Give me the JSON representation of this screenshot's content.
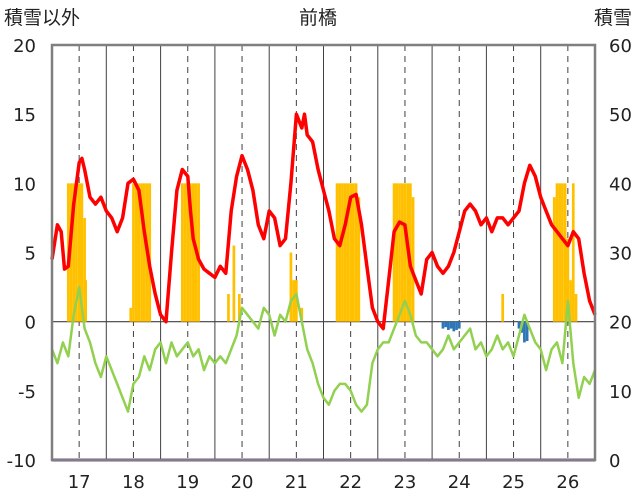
{
  "chart_data": {
    "type": "bar+line",
    "title": "前橋",
    "left_axis": {
      "label": "積雪以外",
      "ylim": [
        -10,
        20
      ],
      "ticks": [
        "20",
        "15",
        "10",
        "5",
        "0",
        "-5",
        "-10"
      ]
    },
    "right_axis": {
      "label": "積雪",
      "ylim": [
        0,
        60
      ],
      "ticks": [
        "60",
        "50",
        "40",
        "30",
        "20",
        "10",
        "0"
      ]
    },
    "x_range": [
      16.5,
      26.5
    ],
    "x_ticks": [
      "17",
      "18",
      "19",
      "20",
      "21",
      "22",
      "23",
      "24",
      "25",
      "26"
    ],
    "grid": {
      "vertical_dashed_at": [
        17,
        18,
        19,
        20,
        21,
        22,
        23,
        24,
        25,
        26
      ],
      "vertical_solid_between": true
    },
    "colors": {
      "red": "#ff0000",
      "green": "#92d050",
      "orange": "#ffc000",
      "blue": "#2e75b6",
      "purple": "#7030a0",
      "frame": "#7f7f7f"
    },
    "series": [
      {
        "color": "red",
        "axis": "left",
        "x": [
          16.5,
          16.6,
          16.67,
          16.73,
          16.8,
          16.9,
          17.0,
          17.05,
          17.1,
          17.2,
          17.3,
          17.4,
          17.5,
          17.6,
          17.7,
          17.8,
          17.9,
          18.0,
          18.1,
          18.2,
          18.3,
          18.4,
          18.5,
          18.6,
          18.7,
          18.8,
          18.9,
          19.0,
          19.05,
          19.1,
          19.2,
          19.3,
          19.4,
          19.5,
          19.6,
          19.7,
          19.8,
          19.9,
          20.0,
          20.1,
          20.2,
          20.3,
          20.4,
          20.5,
          20.6,
          20.7,
          20.8,
          20.9,
          21.0,
          21.1,
          21.15,
          21.2,
          21.3,
          21.4,
          21.5,
          21.6,
          21.7,
          21.8,
          21.9,
          22.0,
          22.1,
          22.2,
          22.3,
          22.4,
          22.5,
          22.6,
          22.7,
          22.8,
          22.9,
          23.0,
          23.1,
          23.2,
          23.3,
          23.4,
          23.5,
          23.6,
          23.7,
          23.8,
          23.9,
          24.0,
          24.1,
          24.2,
          24.3,
          24.4,
          24.5,
          24.6,
          24.7,
          24.8,
          24.9,
          25.0,
          25.1,
          25.2,
          25.3,
          25.4,
          25.5,
          25.6,
          25.7,
          25.8,
          25.9,
          26.0,
          26.1,
          26.2,
          26.3,
          26.4,
          26.5
        ],
        "values": [
          4.5,
          7.0,
          6.5,
          3.8,
          4.0,
          8.5,
          11.5,
          11.8,
          11.0,
          9.0,
          8.5,
          9.0,
          8.0,
          7.5,
          6.5,
          7.5,
          10.0,
          10.3,
          9.5,
          6.5,
          4.0,
          2.0,
          0.5,
          0.0,
          5.0,
          9.5,
          11.0,
          10.5,
          8.0,
          6.0,
          4.5,
          3.8,
          3.5,
          3.2,
          4.0,
          3.5,
          8.0,
          10.5,
          12.0,
          11.0,
          9.5,
          7.0,
          6.0,
          8.0,
          7.5,
          5.5,
          6.0,
          10.0,
          15.0,
          14.0,
          15.0,
          13.5,
          13.0,
          11.0,
          9.5,
          8.0,
          6.0,
          5.5,
          7.0,
          9.0,
          9.2,
          7.0,
          4.0,
          1.0,
          0.0,
          -0.5,
          3.0,
          6.5,
          7.2,
          7.0,
          4.0,
          3.0,
          2.0,
          4.5,
          5.0,
          4.0,
          3.5,
          4.0,
          5.0,
          6.5,
          8.0,
          8.5,
          8.0,
          7.0,
          7.5,
          6.5,
          7.5,
          7.5,
          7.0,
          7.5,
          8.0,
          10.0,
          11.3,
          10.5,
          9.0,
          8.0,
          7.0,
          6.5,
          6.0,
          5.5,
          6.5,
          6.0,
          3.5,
          1.5,
          0.5
        ]
      },
      {
        "color": "green",
        "axis": "left",
        "x": [
          16.5,
          16.6,
          16.7,
          16.8,
          16.9,
          17.0,
          17.1,
          17.2,
          17.3,
          17.4,
          17.5,
          17.6,
          17.7,
          17.8,
          17.9,
          18.0,
          18.1,
          18.2,
          18.3,
          18.4,
          18.5,
          18.6,
          18.7,
          18.8,
          18.9,
          19.0,
          19.1,
          19.2,
          19.3,
          19.4,
          19.5,
          19.6,
          19.7,
          19.8,
          19.9,
          20.0,
          20.1,
          20.2,
          20.3,
          20.4,
          20.5,
          20.6,
          20.7,
          20.8,
          20.9,
          21.0,
          21.1,
          21.2,
          21.3,
          21.4,
          21.5,
          21.6,
          21.7,
          21.8,
          21.9,
          22.0,
          22.1,
          22.2,
          22.3,
          22.4,
          22.5,
          22.6,
          22.7,
          22.8,
          22.9,
          23.0,
          23.1,
          23.2,
          23.3,
          23.4,
          23.5,
          23.6,
          23.7,
          23.8,
          23.9,
          24.0,
          24.1,
          24.2,
          24.3,
          24.4,
          24.5,
          24.6,
          24.7,
          24.8,
          24.9,
          25.0,
          25.1,
          25.2,
          25.3,
          25.4,
          25.5,
          25.6,
          25.7,
          25.8,
          25.9,
          26.0,
          26.1,
          26.2,
          26.3,
          26.4,
          26.5
        ],
        "values": [
          -2.0,
          -3.0,
          -1.5,
          -2.5,
          0.5,
          2.5,
          -0.5,
          -1.5,
          -3.0,
          -4.0,
          -2.5,
          -3.5,
          -4.5,
          -5.5,
          -6.5,
          -4.5,
          -4.0,
          -2.5,
          -3.5,
          -2.0,
          -1.5,
          -3.0,
          -1.5,
          -2.5,
          -2.0,
          -1.5,
          -2.5,
          -2.0,
          -3.5,
          -2.5,
          -3.0,
          -2.5,
          -3.0,
          -2.0,
          -1.0,
          1.0,
          0.5,
          0.0,
          -0.5,
          1.0,
          0.5,
          -1.0,
          0.5,
          0.0,
          1.5,
          2.0,
          0.0,
          -2.0,
          -3.0,
          -4.5,
          -5.5,
          -6.0,
          -5.0,
          -4.5,
          -4.5,
          -5.0,
          -6.0,
          -6.5,
          -6.0,
          -3.0,
          -2.0,
          -1.5,
          -1.5,
          -0.5,
          0.5,
          1.5,
          0.5,
          -1.0,
          -1.5,
          -1.5,
          -2.0,
          -2.5,
          -2.0,
          -1.0,
          -2.0,
          -1.5,
          -1.0,
          -0.5,
          -2.0,
          -1.5,
          -2.5,
          -2.0,
          -1.0,
          -2.0,
          -1.5,
          -2.5,
          -1.0,
          0.5,
          -0.5,
          -1.5,
          -2.0,
          -3.5,
          -2.0,
          -1.5,
          -3.0,
          1.5,
          -3.0,
          -5.5,
          -4.0,
          -4.5,
          -3.5
        ]
      },
      {
        "color": "purple",
        "axis": "left",
        "x": [
          16.5,
          26.5
        ],
        "values": [
          -10,
          -10
        ]
      }
    ],
    "snow_bars": {
      "color": "orange",
      "axis": "right",
      "x": [
        16.8,
        16.85,
        16.9,
        16.95,
        17.0,
        17.05,
        17.1,
        17.12,
        17.95,
        18.0,
        18.05,
        18.1,
        18.15,
        18.2,
        18.25,
        18.3,
        18.9,
        18.95,
        19.0,
        19.05,
        19.1,
        19.15,
        19.2,
        19.75,
        19.85,
        19.95,
        20.0,
        20.9,
        20.95,
        21.0,
        21.1,
        21.75,
        21.8,
        21.85,
        21.9,
        21.95,
        22.0,
        22.05,
        22.1,
        22.15,
        22.8,
        22.85,
        22.9,
        22.95,
        23.0,
        23.05,
        23.1,
        23.15,
        24.8,
        25.75,
        25.8,
        25.85,
        25.9,
        25.95,
        26.0,
        26.05,
        26.1,
        26.15
      ],
      "values": [
        40,
        40,
        40,
        40,
        40,
        40,
        35,
        26,
        22,
        40,
        40,
        40,
        40,
        40,
        40,
        40,
        40,
        40,
        40,
        40,
        40,
        40,
        40,
        24,
        31,
        24,
        20,
        30,
        26,
        26,
        22,
        40,
        40,
        40,
        40,
        40,
        40,
        40,
        40,
        38,
        40,
        40,
        40,
        40,
        40,
        40,
        40,
        38,
        24,
        38,
        40,
        40,
        40,
        40,
        32,
        26,
        40,
        24
      ]
    },
    "blue_bars": {
      "color": "blue",
      "axis": "left",
      "x": [
        23.7,
        23.75,
        23.8,
        23.85,
        23.9,
        23.95,
        24.0,
        25.1,
        25.15,
        25.2,
        25.25
      ],
      "values": [
        -0.5,
        -0.4,
        -0.6,
        -0.5,
        -0.7,
        -0.6,
        -0.5,
        -0.5,
        -0.8,
        -1.5,
        -1.4
      ]
    }
  }
}
